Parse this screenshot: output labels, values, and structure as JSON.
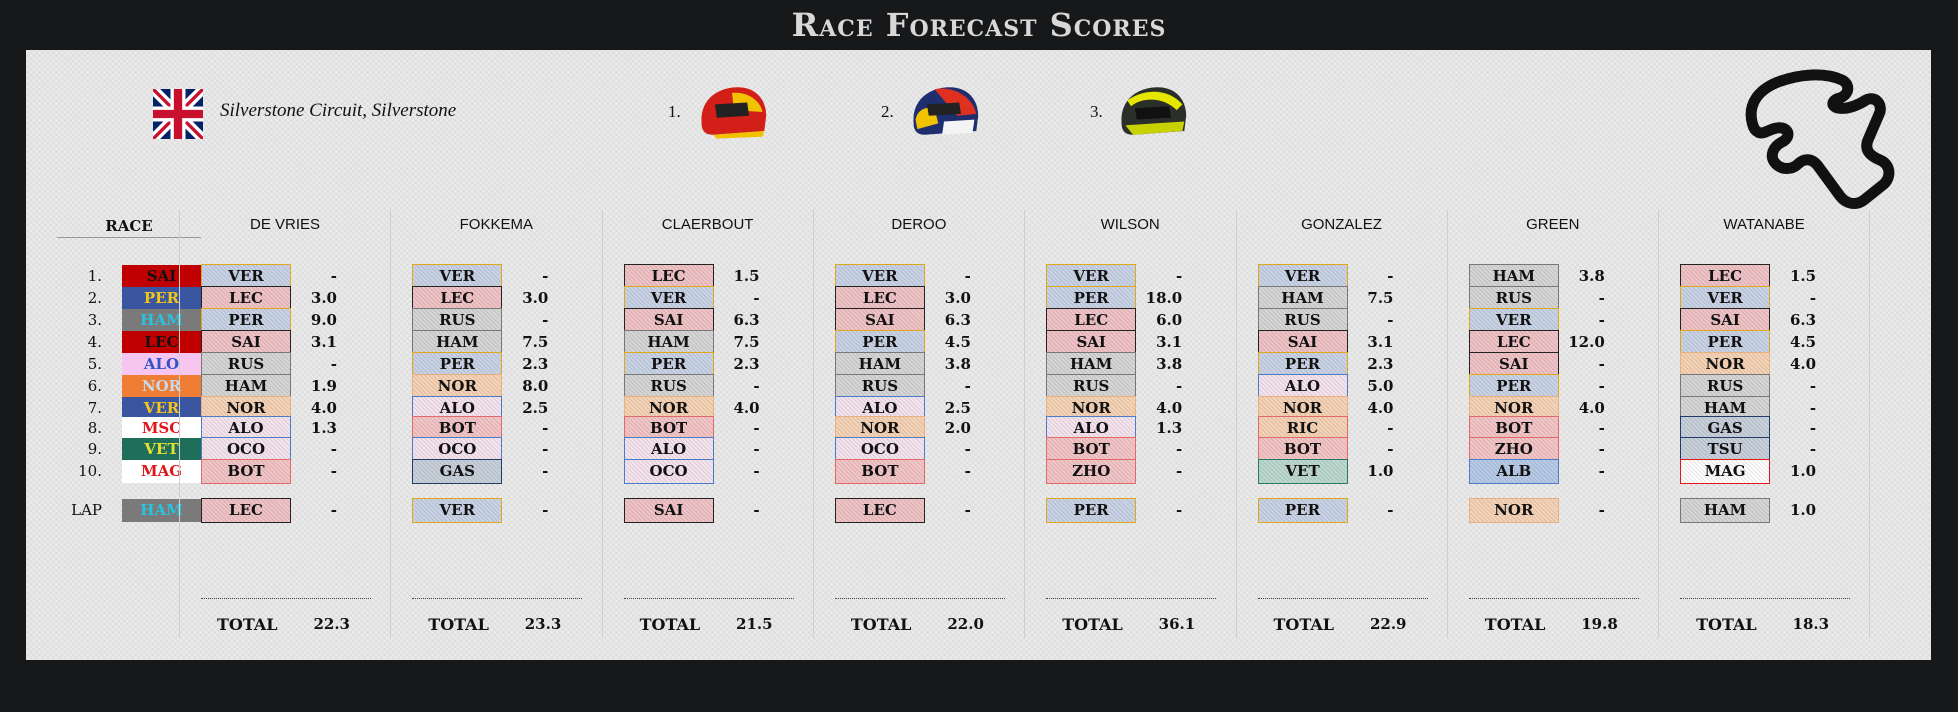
{
  "title": "Race Forecast Scores",
  "circuit": "Silverstone Circuit, Silverstone",
  "podium": [
    "1.",
    "2.",
    "3."
  ],
  "race_header": "RACE",
  "race_positions": [
    "1.",
    "2.",
    "3.",
    "4.",
    "5.",
    "6.",
    "7.",
    "8.",
    "9.",
    "10."
  ],
  "lap_label": "LAP",
  "race_result": [
    {
      "code": "SAI",
      "bg": "#c00000",
      "fg": "#111111"
    },
    {
      "code": "PER",
      "bg": "#3a56a0",
      "fg": "#f5c518"
    },
    {
      "code": "HAM",
      "bg": "#7a7a7a",
      "fg": "#27c4e0"
    },
    {
      "code": "LEC",
      "bg": "#c00000",
      "fg": "#111111"
    },
    {
      "code": "ALO",
      "bg": "#f6c6f0",
      "fg": "#2f55c8"
    },
    {
      "code": "NOR",
      "bg": "#ef7d33",
      "fg": "#c8d8ea"
    },
    {
      "code": "VER",
      "bg": "#3a56a0",
      "fg": "#f5c518"
    },
    {
      "code": "MSC",
      "bg": "#ffffff",
      "fg": "#e0161a"
    },
    {
      "code": "VET",
      "bg": "#1e6e5a",
      "fg": "#e8e030"
    },
    {
      "code": "MAG",
      "bg": "#ffffff",
      "fg": "#e0161a"
    }
  ],
  "race_lap": {
    "code": "HAM",
    "bg": "#7a7a7a",
    "fg": "#27c4e0"
  },
  "total_label": "TOTAL",
  "team_colors": {
    "VER": {
      "bg": "#c9d3e6",
      "border": "#e0a818"
    },
    "PER": {
      "bg": "#c9d3e6",
      "border": "#e0a818"
    },
    "LEC": {
      "bg": "#f0c3c6",
      "border": "#222222"
    },
    "SAI": {
      "bg": "#f0c3c6",
      "border": "#222222"
    },
    "HAM": {
      "bg": "#d6d6d6",
      "border": "#777777"
    },
    "RUS": {
      "bg": "#d6d6d6",
      "border": "#777777"
    },
    "NOR": {
      "bg": "#f6d3b6",
      "border": "#e8b07e"
    },
    "ALO": {
      "bg": "#f5e3ee",
      "border": "#4a7cc8"
    },
    "OCO": {
      "bg": "#f5e3ee",
      "border": "#4a7cc8"
    },
    "GAS": {
      "bg": "#c7d0db",
      "border": "#223a66"
    },
    "TSU": {
      "bg": "#c7d0db",
      "border": "#223a66"
    },
    "BOT": {
      "bg": "#f3c5c7",
      "border": "#e06a6a"
    },
    "ZHO": {
      "bg": "#f3c5c7",
      "border": "#e06a6a"
    },
    "RIC": {
      "bg": "#f6d3b6",
      "border": "#e06a6a"
    },
    "VET": {
      "bg": "#bcd8cf",
      "border": "#2a7a62"
    },
    "ALB": {
      "bg": "#b7cbe8",
      "border": "#4a7cc8"
    },
    "MAG": {
      "bg": "#ffffff",
      "border": "#e0161a"
    }
  },
  "players": [
    {
      "name": "DE VRIES",
      "picks": [
        [
          "VER",
          "-"
        ],
        [
          "LEC",
          "3.0"
        ],
        [
          "PER",
          "9.0"
        ],
        [
          "SAI",
          "3.1"
        ],
        [
          "RUS",
          "-"
        ],
        [
          "HAM",
          "1.9"
        ],
        [
          "NOR",
          "4.0"
        ],
        [
          "ALO",
          "1.3"
        ],
        [
          "OCO",
          "-"
        ],
        [
          "BOT",
          "-"
        ]
      ],
      "lap": [
        "LEC",
        "-"
      ],
      "total": "22.3"
    },
    {
      "name": "FOKKEMA",
      "picks": [
        [
          "VER",
          "-"
        ],
        [
          "LEC",
          "3.0"
        ],
        [
          "RUS",
          "-"
        ],
        [
          "HAM",
          "7.5"
        ],
        [
          "PER",
          "2.3"
        ],
        [
          "NOR",
          "8.0"
        ],
        [
          "ALO",
          "2.5"
        ],
        [
          "BOT",
          "-"
        ],
        [
          "OCO",
          "-"
        ],
        [
          "GAS",
          "-"
        ]
      ],
      "lap": [
        "VER",
        "-"
      ],
      "total": "23.3"
    },
    {
      "name": "CLAERBOUT",
      "picks": [
        [
          "LEC",
          "1.5"
        ],
        [
          "VER",
          "-"
        ],
        [
          "SAI",
          "6.3"
        ],
        [
          "HAM",
          "7.5"
        ],
        [
          "PER",
          "2.3"
        ],
        [
          "RUS",
          "-"
        ],
        [
          "NOR",
          "4.0"
        ],
        [
          "BOT",
          "-"
        ],
        [
          "ALO",
          "-"
        ],
        [
          "OCO",
          "-"
        ]
      ],
      "lap": [
        "SAI",
        "-"
      ],
      "total": "21.5"
    },
    {
      "name": "DEROO",
      "picks": [
        [
          "VER",
          "-"
        ],
        [
          "LEC",
          "3.0"
        ],
        [
          "SAI",
          "6.3"
        ],
        [
          "PER",
          "4.5"
        ],
        [
          "HAM",
          "3.8"
        ],
        [
          "RUS",
          "-"
        ],
        [
          "ALO",
          "2.5"
        ],
        [
          "NOR",
          "2.0"
        ],
        [
          "OCO",
          "-"
        ],
        [
          "BOT",
          "-"
        ]
      ],
      "lap": [
        "LEC",
        "-"
      ],
      "total": "22.0"
    },
    {
      "name": "WILSON",
      "picks": [
        [
          "VER",
          "-"
        ],
        [
          "PER",
          "18.0"
        ],
        [
          "LEC",
          "6.0"
        ],
        [
          "SAI",
          "3.1"
        ],
        [
          "HAM",
          "3.8"
        ],
        [
          "RUS",
          "-"
        ],
        [
          "NOR",
          "4.0"
        ],
        [
          "ALO",
          "1.3"
        ],
        [
          "BOT",
          "-"
        ],
        [
          "ZHO",
          "-"
        ]
      ],
      "lap": [
        "PER",
        "-"
      ],
      "total": "36.1"
    },
    {
      "name": "GONZALEZ",
      "picks": [
        [
          "VER",
          "-"
        ],
        [
          "HAM",
          "7.5"
        ],
        [
          "RUS",
          "-"
        ],
        [
          "SAI",
          "3.1"
        ],
        [
          "PER",
          "2.3"
        ],
        [
          "ALO",
          "5.0"
        ],
        [
          "NOR",
          "4.0"
        ],
        [
          "RIC",
          "-"
        ],
        [
          "BOT",
          "-"
        ],
        [
          "VET",
          "1.0"
        ]
      ],
      "lap": [
        "PER",
        "-"
      ],
      "total": "22.9"
    },
    {
      "name": "GREEN",
      "picks": [
        [
          "HAM",
          "3.8"
        ],
        [
          "RUS",
          "-"
        ],
        [
          "VER",
          "-"
        ],
        [
          "LEC",
          "12.0"
        ],
        [
          "SAI",
          "-"
        ],
        [
          "PER",
          "-"
        ],
        [
          "NOR",
          "4.0"
        ],
        [
          "BOT",
          "-"
        ],
        [
          "ZHO",
          "-"
        ],
        [
          "ALB",
          "-"
        ]
      ],
      "lap": [
        "NOR",
        "-"
      ],
      "total": "19.8"
    },
    {
      "name": "WATANABE",
      "picks": [
        [
          "LEC",
          "1.5"
        ],
        [
          "VER",
          "-"
        ],
        [
          "SAI",
          "6.3"
        ],
        [
          "PER",
          "4.5"
        ],
        [
          "NOR",
          "4.0"
        ],
        [
          "RUS",
          "-"
        ],
        [
          "HAM",
          "-"
        ],
        [
          "GAS",
          "-"
        ],
        [
          "TSU",
          "-"
        ],
        [
          "MAG",
          "1.0"
        ]
      ],
      "lap": [
        "HAM",
        "1.0"
      ],
      "total": "18.3"
    }
  ]
}
